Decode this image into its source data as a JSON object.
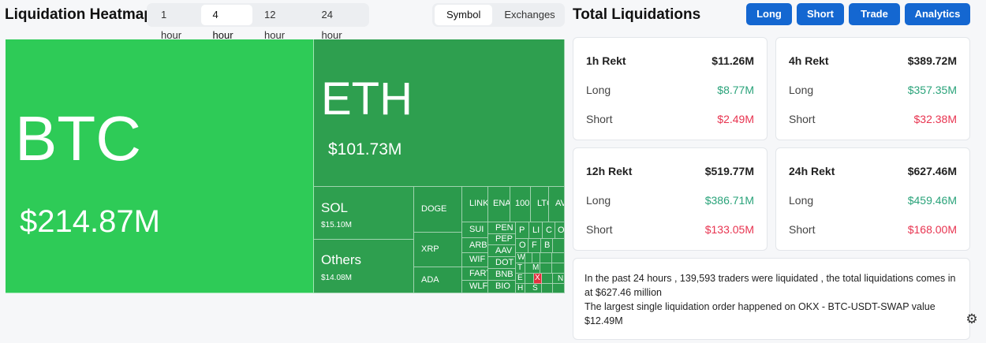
{
  "header": {
    "title": "Liquidation Heatmap",
    "time_options": [
      "1 hour",
      "4 hour",
      "12 hour",
      "24 hour"
    ],
    "time_selected": "4 hour",
    "group_options": [
      "Symbol",
      "Exchanges"
    ],
    "group_selected": "Symbol"
  },
  "totals_header": {
    "title": "Total Liquidations",
    "buttons": [
      "Long",
      "Short",
      "Trade",
      "Analytics"
    ],
    "accent": "#1467d1"
  },
  "heatmap": {
    "colors": {
      "large": "#2ecb57",
      "medium": "#2e9f4f",
      "small": "#2b9a4c",
      "negative": "#e3303f"
    },
    "btc": {
      "symbol": "BTC",
      "value": "$214.87M"
    },
    "eth": {
      "symbol": "ETH",
      "value": "$101.73M"
    },
    "sol": {
      "symbol": "SOL",
      "value": "$15.10M"
    },
    "others": {
      "symbol": "Others",
      "value": "$14.08M"
    },
    "doge": "DOGE",
    "xrp": "XRP",
    "ada": "ADA",
    "small_top": [
      "LINK",
      "ENA",
      "100",
      "LTC",
      "AV"
    ],
    "small_mid": [
      "SUI",
      "ARB",
      "WIF",
      "FART",
      "WLFI"
    ],
    "small_mid2": [
      "PEN",
      "PEP",
      "AAV",
      "DOT",
      "BNB",
      "BIO"
    ],
    "tiny_a": [
      "P",
      "LI",
      "C",
      "O"
    ],
    "tiny_b": [
      "O",
      "F",
      "B"
    ],
    "tiny_c": [
      "W",
      "T",
      "E",
      "H"
    ],
    "tiny_d": [
      "M",
      "X",
      "S"
    ],
    "tiny_e": [
      "N"
    ]
  },
  "cards": [
    {
      "title": "1h Rekt",
      "total": "$11.26M",
      "long_label": "Long",
      "long": "$8.77M",
      "short_label": "Short",
      "short": "$2.49M"
    },
    {
      "title": "4h Rekt",
      "total": "$389.72M",
      "long_label": "Long",
      "long": "$357.35M",
      "short_label": "Short",
      "short": "$32.38M"
    },
    {
      "title": "12h Rekt",
      "total": "$519.77M",
      "long_label": "Long",
      "long": "$386.71M",
      "short_label": "Short",
      "short": "$133.05M"
    },
    {
      "title": "24h Rekt",
      "total": "$627.46M",
      "long_label": "Long",
      "long": "$459.46M",
      "short_label": "Short",
      "short": "$168.00M"
    }
  ],
  "info": {
    "line1": "In the past 24 hours , 139,593 traders were liquidated , the total liquidations comes in at $627.46 million",
    "line2": "The largest single liquidation order happened on OKX - BTC-USDT-SWAP value $12.49M"
  },
  "settings_icon": "settings-icon"
}
